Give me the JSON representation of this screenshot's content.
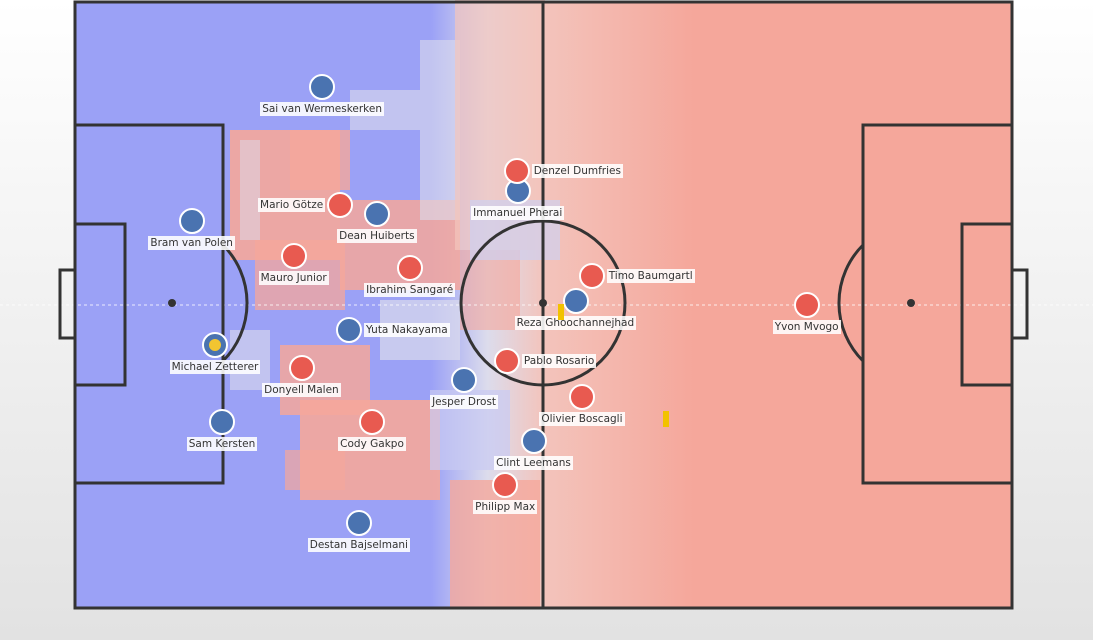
{
  "pitch": {
    "length_m": 105,
    "width_m": 68
  },
  "colors": {
    "home_team": "#4a73b0",
    "away_team": "#e85a50",
    "home_control": "#9ba1f6",
    "away_control": "#f5a79b",
    "neutral": "#dcdcec",
    "lines": "#333333",
    "ball": "#f2c531"
  },
  "players": [
    {
      "name": "Sai van Wermeskerken",
      "team": "home",
      "x": 27.7,
      "y": 9.5,
      "label": "below"
    },
    {
      "name": "Bram van Polen",
      "team": "home",
      "x": 13.1,
      "y": 24.6,
      "label": "below"
    },
    {
      "name": "Dean Huiberts",
      "team": "home",
      "x": 33.8,
      "y": 23.8,
      "label": "below"
    },
    {
      "name": "Michael Zetterer",
      "team": "home",
      "x": 15.7,
      "y": 38.5,
      "label": "below",
      "has_ball": true
    },
    {
      "name": "Yuta Nakayama",
      "team": "home",
      "x": 30.7,
      "y": 36.8,
      "label": "right"
    },
    {
      "name": "Sam Kersten",
      "team": "home",
      "x": 16.5,
      "y": 47.1,
      "label": "below"
    },
    {
      "name": "Destan Bajselmani",
      "team": "home",
      "x": 31.8,
      "y": 58.5,
      "label": "below"
    },
    {
      "name": "Immanuel Pherai",
      "team": "home",
      "x": 49.6,
      "y": 21.2,
      "label": "below"
    },
    {
      "name": "Reza Ghoochannejhad",
      "team": "home",
      "x": 56.1,
      "y": 33.6,
      "label": "below"
    },
    {
      "name": "Jesper Drost",
      "team": "home",
      "x": 43.6,
      "y": 42.4,
      "label": "below"
    },
    {
      "name": "Clint Leemans",
      "team": "home",
      "x": 51.4,
      "y": 49.3,
      "label": "below"
    },
    {
      "name": "Denzel Dumfries",
      "team": "away",
      "x": 49.5,
      "y": 19.0,
      "label": "right"
    },
    {
      "name": "Mario Götze",
      "team": "away",
      "x": 29.7,
      "y": 22.8,
      "label": "left"
    },
    {
      "name": "Mauro Junior",
      "team": "away",
      "x": 24.5,
      "y": 28.5,
      "label": "below"
    },
    {
      "name": "Ibrahim Sangaré",
      "team": "away",
      "x": 37.5,
      "y": 29.8,
      "label": "below"
    },
    {
      "name": "Timo Baumgartl",
      "team": "away",
      "x": 57.9,
      "y": 30.7,
      "label": "right"
    },
    {
      "name": "Pablo Rosario",
      "team": "away",
      "x": 48.4,
      "y": 40.3,
      "label": "right"
    },
    {
      "name": "Donyell Malen",
      "team": "away",
      "x": 25.4,
      "y": 41.1,
      "label": "below"
    },
    {
      "name": "Olivier Boscagli",
      "team": "away",
      "x": 56.8,
      "y": 44.3,
      "label": "below"
    },
    {
      "name": "Cody Gakpo",
      "team": "away",
      "x": 33.3,
      "y": 47.1,
      "label": "below"
    },
    {
      "name": "Philipp Max",
      "team": "away",
      "x": 48.2,
      "y": 54.2,
      "label": "below"
    },
    {
      "name": "Yvon Mvogo",
      "team": "away",
      "x": 82.0,
      "y": 34.0,
      "label": "below"
    }
  ],
  "markers": [
    {
      "x": 54.5,
      "y": 34.8
    },
    {
      "x": 66.2,
      "y": 46.8
    }
  ]
}
